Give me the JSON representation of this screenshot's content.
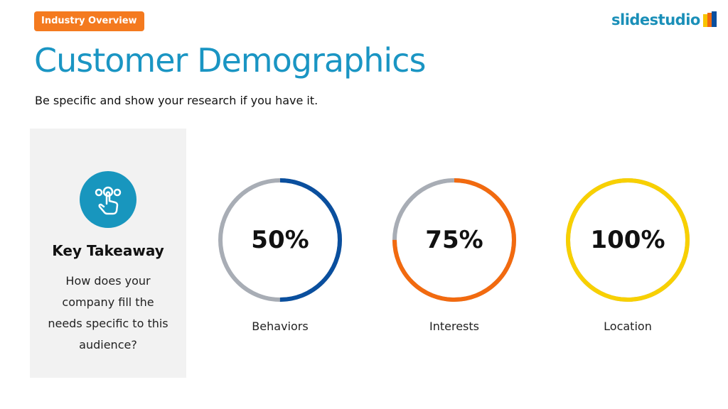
{
  "header": {
    "badge": "Industry Overview",
    "title": "Customer Demographics",
    "subtitle": "Be specific and show your research if you have it.",
    "logo": "slidestudio"
  },
  "takeaway": {
    "icon": "hand-tap-icon",
    "title": "Key Takeaway",
    "body": "How does your company fill the needs specific to this audience?"
  },
  "stats": [
    {
      "value": "50%",
      "label": "Behaviors",
      "fraction": 0.5,
      "color": "#0a4f9e"
    },
    {
      "value": "75%",
      "label": "Interests",
      "fraction": 0.75,
      "color": "#f26a0f"
    },
    {
      "value": "100%",
      "label": "Location",
      "fraction": 1.0,
      "color": "#f8d000"
    }
  ],
  "colors": {
    "track": "#a8adb5",
    "accent": "#1a95c3",
    "badge": "#f47a1f"
  }
}
